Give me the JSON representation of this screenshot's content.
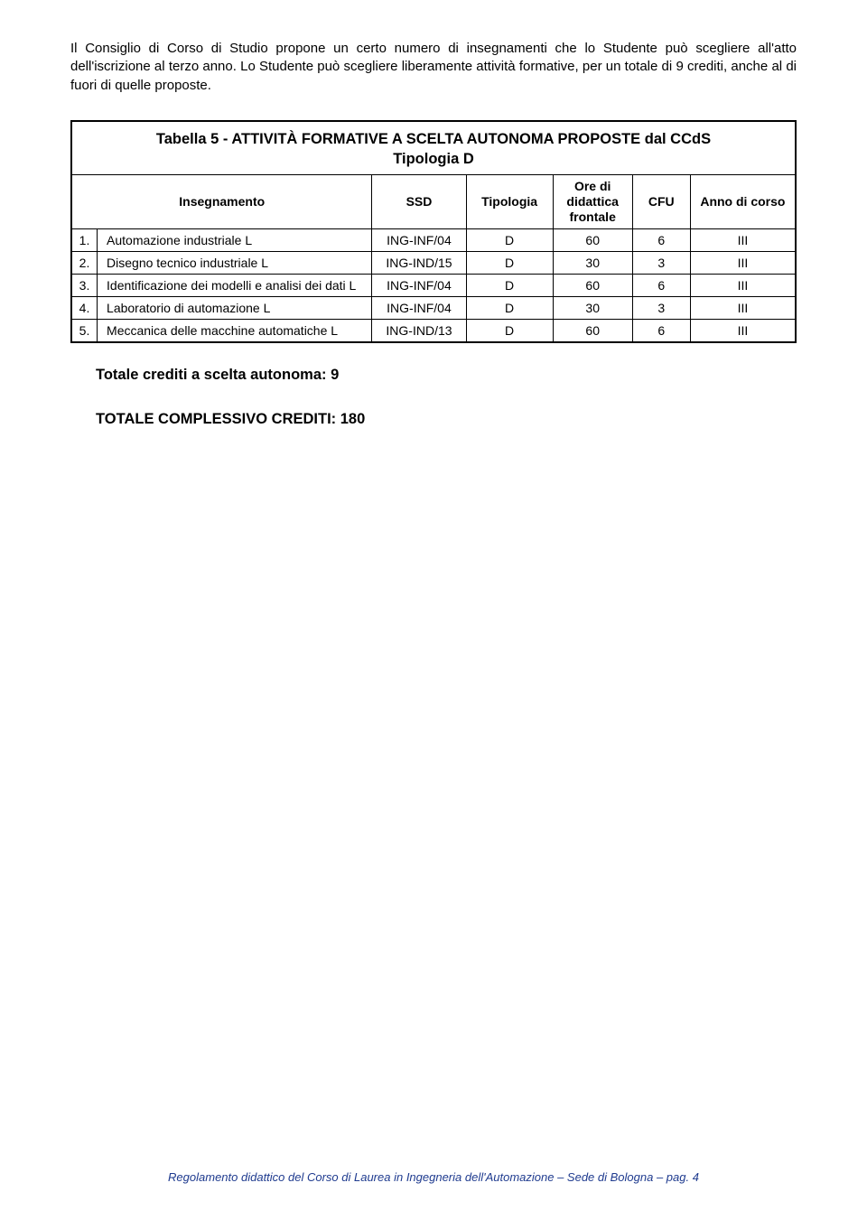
{
  "intro": {
    "p1": "Il Consiglio di Corso di Studio propone un certo numero di insegnamenti che lo Studente può scegliere all'atto dell'iscrizione al terzo anno. Lo Studente può scegliere liberamente attività formative, per un totale di 9 crediti, anche al di fuori di quelle proposte."
  },
  "table": {
    "title_line1": "Tabella 5 - ATTIVITÀ FORMATIVE A SCELTA AUTONOMA PROPOSTE dal CCdS",
    "title_line2": "Tipologia D",
    "headers": {
      "insegnamento": "Insegnamento",
      "ssd": "SSD",
      "tipologia": "Tipologia",
      "ore": "Ore di didattica frontale",
      "cfu": "CFU",
      "anno": "Anno di corso"
    },
    "rows": [
      {
        "n": "1.",
        "name": "Automazione industriale L",
        "ssd": "ING-INF/04",
        "tip": "D",
        "ore": "60",
        "cfu": "6",
        "anno": "III"
      },
      {
        "n": "2.",
        "name": "Disegno tecnico industriale L",
        "ssd": "ING-IND/15",
        "tip": "D",
        "ore": "30",
        "cfu": "3",
        "anno": "III"
      },
      {
        "n": "3.",
        "name": "Identificazione dei modelli e analisi dei dati L",
        "ssd": "ING-INF/04",
        "tip": "D",
        "ore": "60",
        "cfu": "6",
        "anno": "III"
      },
      {
        "n": "4.",
        "name": "Laboratorio di automazione L",
        "ssd": "ING-INF/04",
        "tip": "D",
        "ore": "30",
        "cfu": "3",
        "anno": "III"
      },
      {
        "n": "5.",
        "name": "Meccanica delle macchine automatiche L",
        "ssd": "ING-IND/13",
        "tip": "D",
        "ore": "60",
        "cfu": "6",
        "anno": "III"
      }
    ]
  },
  "totals": {
    "credits_autonoma": "Totale crediti a scelta autonoma: 9",
    "credits_total": "TOTALE COMPLESSIVO CREDITI: 180"
  },
  "footer": {
    "text": "Regolamento didattico del Corso di Laurea in Ingegneria dell'Automazione – Sede di Bologna – pag. 4",
    "color": "#1f3b8f"
  },
  "style": {
    "background": "#ffffff",
    "text_color": "#000000",
    "border_color": "#000000",
    "body_fontsize": 15,
    "table_fontsize": 14,
    "title_fontsize": 16.5,
    "totals_fontsize": 16.5,
    "footer_fontsize": 13
  }
}
